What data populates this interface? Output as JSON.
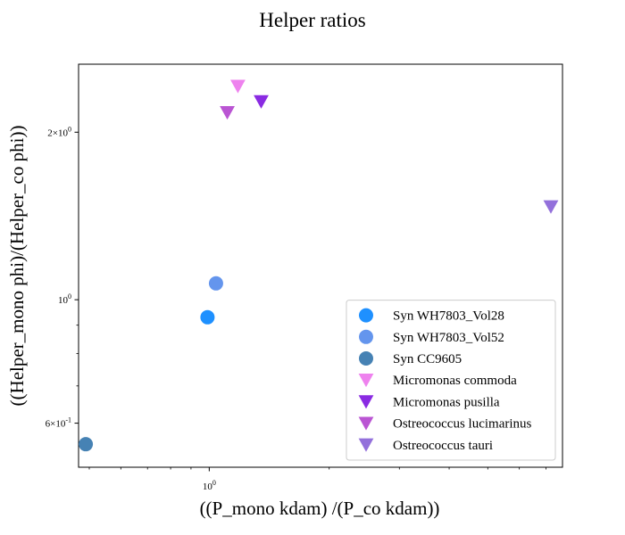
{
  "chart_data": {
    "type": "scatter",
    "title": "Helper ratios",
    "xlabel": "((P_mono kdam) /(P_co kdam))",
    "ylabel": "((Helper_mono phi)/(Helper_co phi))",
    "xscale": "log",
    "yscale": "log",
    "xlim": [
      0.47,
      7.7
    ],
    "ylim": [
      0.5,
      2.65
    ],
    "x_ticks": [
      {
        "value": 1.0,
        "label": "10^0"
      }
    ],
    "y_ticks": [
      {
        "value": 0.6,
        "label": "6×10^-1"
      },
      {
        "value": 1.0,
        "label": "10^0"
      },
      {
        "value": 2.0,
        "label": "2×10^0"
      }
    ],
    "grid": false,
    "legend_position": "lower right",
    "series": [
      {
        "name": "Syn WH7803_Vol28",
        "marker": "circle",
        "color": "#1E90FF",
        "points": [
          {
            "x": 0.99,
            "y": 0.93
          }
        ]
      },
      {
        "name": "Syn WH7803_Vol52",
        "marker": "circle",
        "color": "#6495ED",
        "points": [
          {
            "x": 1.04,
            "y": 1.07
          }
        ]
      },
      {
        "name": "Syn CC9605",
        "marker": "circle",
        "color": "#4682B4",
        "points": [
          {
            "x": 0.49,
            "y": 0.55
          }
        ]
      },
      {
        "name": "Micromonas commoda",
        "marker": "triangle-down",
        "color": "#EE82EE",
        "points": [
          {
            "x": 1.18,
            "y": 2.42
          }
        ]
      },
      {
        "name": "Micromonas pusilla",
        "marker": "triangle-down",
        "color": "#8A2BE2",
        "points": [
          {
            "x": 1.35,
            "y": 2.27
          }
        ]
      },
      {
        "name": "Ostreococcus lucimarinus",
        "marker": "triangle-down",
        "color": "#BA55D3",
        "points": [
          {
            "x": 1.11,
            "y": 2.17
          }
        ]
      },
      {
        "name": "Ostreococcus tauri",
        "marker": "triangle-down",
        "color": "#9370DB",
        "points": [
          {
            "x": 7.2,
            "y": 1.47
          }
        ]
      }
    ]
  }
}
